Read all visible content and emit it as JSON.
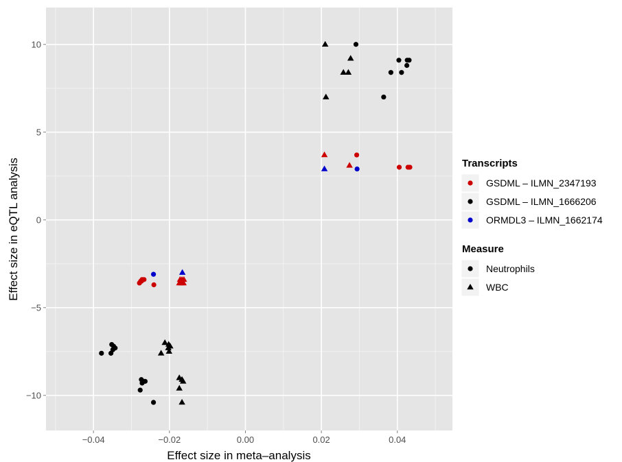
{
  "chart_data": {
    "type": "scatter",
    "xlabel": "Effect size in meta–analysis",
    "ylabel": "Effect size in eQTL analysis",
    "xlim": [
      -0.0525,
      0.0545
    ],
    "ylim": [
      -12.0,
      12.1
    ],
    "x_ticks": [
      -0.04,
      -0.02,
      0.0,
      0.02,
      0.04
    ],
    "x_tick_labels": [
      "−0.04",
      "−0.02",
      "0.00",
      "0.02",
      "0.04"
    ],
    "y_ticks": [
      -10,
      -5,
      0,
      5,
      10
    ],
    "y_tick_labels": [
      "−10",
      "−5",
      "0",
      "5",
      "10"
    ],
    "grid": true,
    "panel_background": "#e5e5e5",
    "grid_color": "#ffffff",
    "legends": [
      {
        "title": "Transcripts",
        "kind": "color",
        "entries": [
          {
            "label": "GSDML – ILMN_2347193",
            "color": "#cc0000"
          },
          {
            "label": "GSDML – ILMN_1666206",
            "color": "#000000"
          },
          {
            "label": "ORMDL3 – ILMN_1662174",
            "color": "#0000cc"
          }
        ]
      },
      {
        "title": "Measure",
        "kind": "shape",
        "entries": [
          {
            "label": "Neutrophils",
            "shape": "circle"
          },
          {
            "label": "WBC",
            "shape": "triangle"
          }
        ]
      }
    ],
    "legend_position": "right",
    "series": [
      {
        "transcript": "GSDML – ILMN_1666206",
        "measure": "Neutrophils",
        "color": "#000000",
        "shape": "circle",
        "points": [
          [
            0.0291,
            10.0
          ],
          [
            0.0404,
            9.1
          ],
          [
            0.0426,
            9.1
          ],
          [
            0.0431,
            9.1
          ],
          [
            0.0425,
            8.8
          ],
          [
            0.0383,
            8.4
          ],
          [
            0.0411,
            8.4
          ],
          [
            0.0364,
            7.0
          ],
          [
            -0.0379,
            -7.6
          ],
          [
            -0.0352,
            -7.1
          ],
          [
            -0.0347,
            -7.2
          ],
          [
            -0.0343,
            -7.3
          ],
          [
            -0.0349,
            -7.4
          ],
          [
            -0.0354,
            -7.6
          ],
          [
            -0.0274,
            -9.1
          ],
          [
            -0.0268,
            -9.2
          ],
          [
            -0.0264,
            -9.2
          ],
          [
            -0.0272,
            -9.3
          ],
          [
            -0.0277,
            -9.7
          ],
          [
            -0.0242,
            -10.4
          ]
        ]
      },
      {
        "transcript": "GSDML – ILMN_1666206",
        "measure": "WBC",
        "color": "#000000",
        "shape": "triangle",
        "points": [
          [
            0.021,
            10.0
          ],
          [
            0.0277,
            9.2
          ],
          [
            0.0258,
            8.4
          ],
          [
            0.0271,
            8.4
          ],
          [
            0.0212,
            7.0
          ],
          [
            -0.0212,
            -7.0
          ],
          [
            -0.0202,
            -7.1
          ],
          [
            -0.0198,
            -7.2
          ],
          [
            -0.0203,
            -7.3
          ],
          [
            -0.0201,
            -7.5
          ],
          [
            -0.0222,
            -7.6
          ],
          [
            -0.0174,
            -9.0
          ],
          [
            -0.0167,
            -9.1
          ],
          [
            -0.0164,
            -9.2
          ],
          [
            -0.0174,
            -9.6
          ],
          [
            -0.0167,
            -10.4
          ]
        ]
      },
      {
        "transcript": "GSDML – ILMN_2347193",
        "measure": "Neutrophils",
        "color": "#cc0000",
        "shape": "circle",
        "points": [
          [
            0.0293,
            3.7
          ],
          [
            0.0405,
            3.0
          ],
          [
            0.0428,
            3.0
          ],
          [
            0.0433,
            3.0
          ],
          [
            -0.0267,
            -3.4
          ],
          [
            -0.0272,
            -3.4
          ],
          [
            -0.0276,
            -3.5
          ],
          [
            -0.0274,
            -3.5
          ],
          [
            -0.0279,
            -3.6
          ],
          [
            -0.0241,
            -3.7
          ]
        ]
      },
      {
        "transcript": "GSDML – ILMN_2347193",
        "measure": "WBC",
        "color": "#cc0000",
        "shape": "triangle",
        "points": [
          [
            0.0208,
            3.7
          ],
          [
            0.0274,
            3.1
          ],
          [
            -0.0172,
            -3.4
          ],
          [
            -0.0167,
            -3.4
          ],
          [
            -0.0162,
            -3.4
          ],
          [
            -0.0174,
            -3.6
          ],
          [
            -0.0168,
            -3.6
          ],
          [
            -0.0163,
            -3.6
          ]
        ]
      },
      {
        "transcript": "ORMDL3 – ILMN_1662174",
        "measure": "Neutrophils",
        "color": "#0000cc",
        "shape": "circle",
        "points": [
          [
            0.0294,
            2.9
          ],
          [
            -0.0242,
            -3.1
          ]
        ]
      },
      {
        "transcript": "ORMDL3 – ILMN_1662174",
        "measure": "WBC",
        "color": "#0000cc",
        "shape": "triangle",
        "points": [
          [
            0.0208,
            2.9
          ],
          [
            -0.0166,
            -3.0
          ]
        ]
      }
    ]
  }
}
